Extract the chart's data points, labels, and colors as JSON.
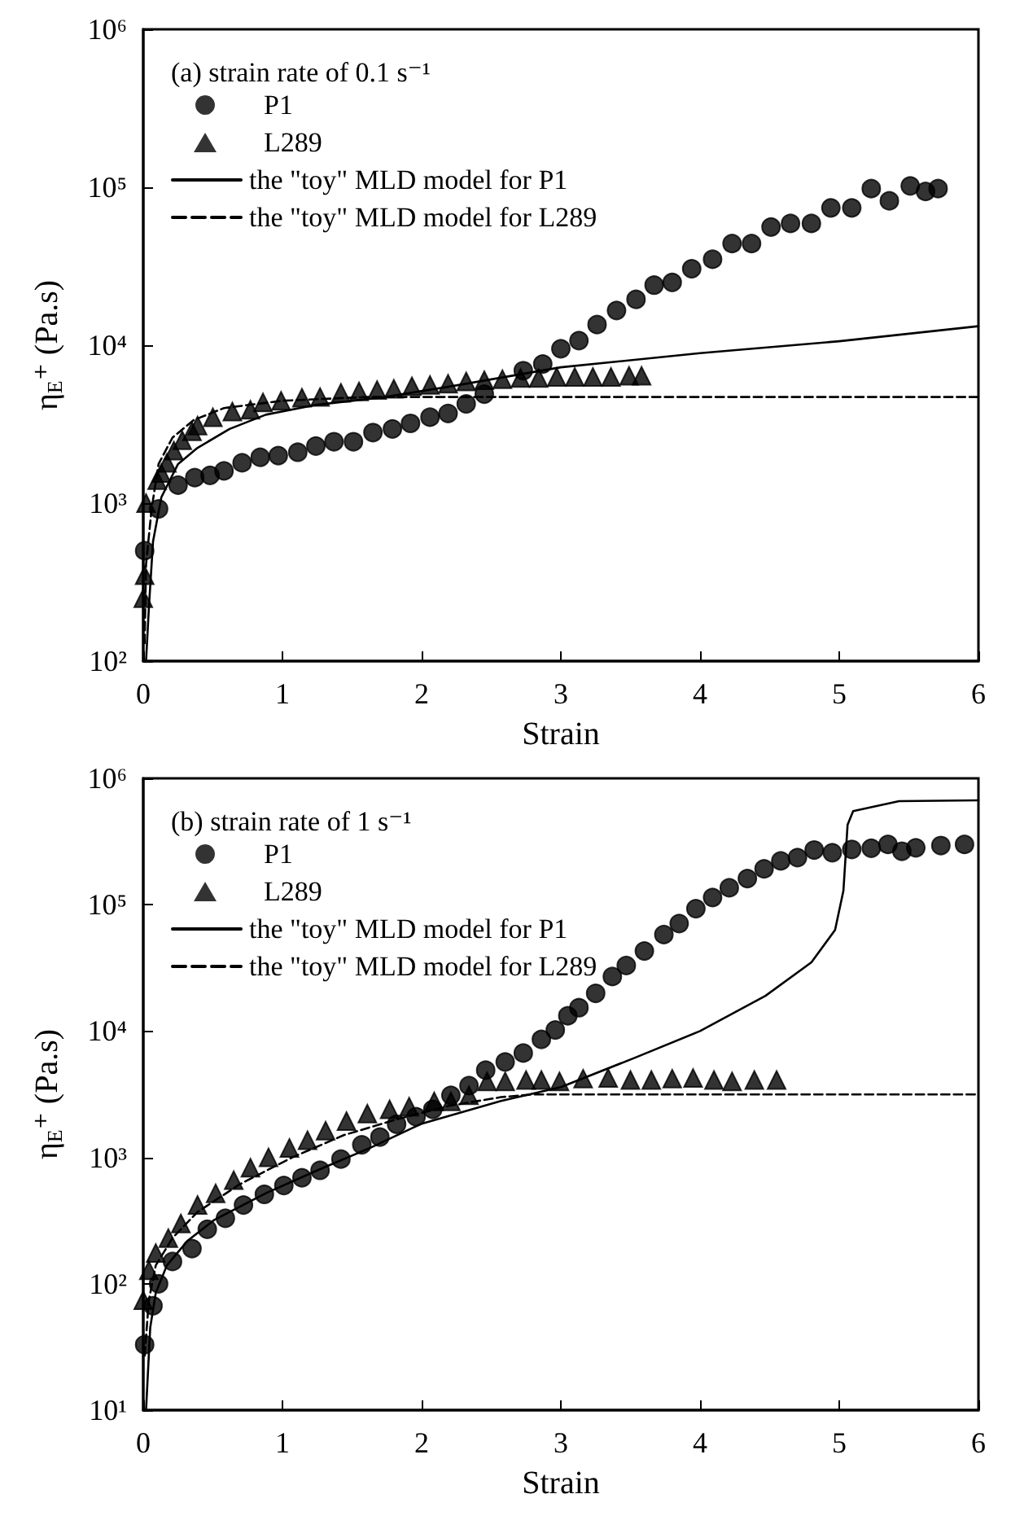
{
  "chart_data": [
    {
      "type": "scatter",
      "legend_title": "(a) strain rate of 0.1 s⁻¹",
      "xlabel": "Strain",
      "ylabel": "η$_{E}$⁺ (Pa.s)",
      "xlim": [
        0,
        6
      ],
      "xticks": [
        0,
        1,
        2,
        3,
        4,
        5,
        6
      ],
      "ylim": [
        100,
        1000000
      ],
      "yticks": [
        {
          "value": 100,
          "label": "10²"
        },
        {
          "value": 1000,
          "label": "10³"
        },
        {
          "value": 10000,
          "label": "10⁴"
        },
        {
          "value": 100000,
          "label": "10⁵"
        },
        {
          "value": 1000000,
          "label": "10⁶"
        }
      ],
      "log": "y",
      "grid": false,
      "legend": "top left",
      "series": [
        {
          "name": "P1",
          "type": "scatter",
          "marker": "circle",
          "color": "#000000",
          "x": [
            0.01,
            0.11,
            0.25,
            0.37,
            0.48,
            0.58,
            0.71,
            0.84,
            0.97,
            1.11,
            1.24,
            1.37,
            1.51,
            1.65,
            1.79,
            1.92,
            2.06,
            2.19,
            2.32,
            2.45,
            2.73,
            2.87,
            3.0,
            3.13,
            3.26,
            3.4,
            3.54,
            3.67,
            3.8,
            3.94,
            4.09,
            4.23,
            4.37,
            4.51,
            4.65,
            4.8,
            4.94,
            5.09,
            5.23,
            5.36,
            5.51,
            5.62,
            5.71
          ],
          "values": [
            500,
            920,
            1300,
            1450,
            1500,
            1600,
            1800,
            1950,
            2000,
            2100,
            2300,
            2450,
            2450,
            2800,
            2950,
            3200,
            3500,
            3700,
            4250,
            4900,
            6900,
            7600,
            9500,
            10700,
            13500,
            16600,
            19500,
            24000,
            25000,
            30500,
            35000,
            44000,
            44000,
            56000,
            59000,
            59000,
            74000,
            74000,
            98000,
            82000,
            102000,
            94000,
            98000
          ]
        },
        {
          "name": "L289",
          "type": "scatter",
          "marker": "triangle",
          "color": "#000000",
          "x": [
            0.0,
            0.01,
            0.02,
            0.1,
            0.13,
            0.17,
            0.22,
            0.28,
            0.35,
            0.39,
            0.5,
            0.64,
            0.77,
            0.86,
            0.99,
            1.14,
            1.27,
            1.42,
            1.55,
            1.68,
            1.8,
            1.93,
            2.06,
            2.19,
            2.32,
            2.45,
            2.58,
            2.71,
            2.84,
            2.97,
            3.1,
            3.23,
            3.36,
            3.49,
            3.58
          ],
          "values": [
            250,
            350,
            1000,
            1400,
            1550,
            1800,
            2150,
            2500,
            2850,
            3100,
            3500,
            3800,
            3900,
            4350,
            4450,
            4650,
            4700,
            5000,
            5100,
            5200,
            5300,
            5500,
            5600,
            5700,
            5900,
            6000,
            6100,
            6200,
            6200,
            6300,
            6300,
            6300,
            6300,
            6400,
            6400
          ]
        },
        {
          "name": "the \"toy\" MLD model for P1",
          "type": "line",
          "marker": "none",
          "line_style": "solid",
          "color": "#000000",
          "x": [
            0.02,
            0.04,
            0.07,
            0.13,
            0.25,
            0.39,
            0.62,
            0.88,
            1.25,
            1.7,
            2.19,
            3.0,
            4.0,
            5.0,
            6.0
          ],
          "values": [
            100,
            215,
            570,
            1090,
            1770,
            2240,
            2950,
            3630,
            4200,
            4650,
            5450,
            7250,
            8900,
            10600,
            13200
          ]
        },
        {
          "name": "the \"toy\" MLD model for L289",
          "type": "line",
          "marker": "none",
          "line_style": "dashed",
          "color": "#000000",
          "x": [
            0.01,
            0.02,
            0.06,
            0.11,
            0.21,
            0.36,
            0.58,
            1.0,
            1.6,
            6.0
          ],
          "values": [
            130,
            410,
            920,
            1770,
            2600,
            3350,
            4000,
            4450,
            4700,
            4700
          ]
        }
      ]
    },
    {
      "type": "scatter",
      "legend_title": "(b) strain rate of 1 s⁻¹",
      "xlabel": "Strain",
      "ylabel": "η$_{E}$⁺ (Pa.s)",
      "xlim": [
        0,
        6
      ],
      "xticks": [
        0,
        1,
        2,
        3,
        4,
        5,
        6
      ],
      "ylim": [
        10,
        1000000
      ],
      "yticks": [
        {
          "value": 10,
          "label": "10¹"
        },
        {
          "value": 100,
          "label": "10²"
        },
        {
          "value": 1000,
          "label": "10³"
        },
        {
          "value": 10000,
          "label": "10⁴"
        },
        {
          "value": 100000,
          "label": "10⁵"
        },
        {
          "value": 1000000,
          "label": "10⁶"
        }
      ],
      "log": "y",
      "grid": false,
      "legend": "top left",
      "series": [
        {
          "name": "P1",
          "type": "scatter",
          "marker": "circle",
          "color": "#000000",
          "x": [
            0.01,
            0.07,
            0.11,
            0.21,
            0.35,
            0.46,
            0.59,
            0.72,
            0.87,
            1.01,
            1.14,
            1.27,
            1.42,
            1.57,
            1.7,
            1.82,
            1.96,
            2.08,
            2.21,
            2.34,
            2.46,
            2.6,
            2.73,
            2.86,
            2.96,
            3.05,
            3.13,
            3.25,
            3.37,
            3.47,
            3.6,
            3.74,
            3.85,
            3.97,
            4.09,
            4.21,
            4.34,
            4.46,
            4.58,
            4.7,
            4.82,
            4.95,
            5.09,
            5.23,
            5.35,
            5.45,
            5.55,
            5.73,
            5.9
          ],
          "values": [
            33,
            67,
            100,
            150,
            190,
            270,
            330,
            420,
            510,
            600,
            690,
            790,
            970,
            1260,
            1450,
            1830,
            2100,
            2400,
            3100,
            3700,
            4900,
            5700,
            6700,
            8600,
            10200,
            13200,
            15300,
            19900,
            27000,
            33000,
            43000,
            58000,
            71000,
            93000,
            114000,
            136000,
            161000,
            192000,
            222000,
            236000,
            271000,
            258000,
            274000,
            280000,
            300000,
            265000,
            282000,
            294000,
            300000
          ]
        },
        {
          "name": "L289",
          "type": "scatter",
          "marker": "triangle",
          "color": "#000000",
          "x": [
            0.0,
            0.04,
            0.09,
            0.18,
            0.27,
            0.39,
            0.52,
            0.65,
            0.77,
            0.9,
            1.05,
            1.18,
            1.31,
            1.46,
            1.61,
            1.77,
            1.91,
            2.09,
            2.21,
            2.34,
            2.47,
            2.6,
            2.75,
            2.86,
            2.99,
            3.16,
            3.34,
            3.5,
            3.65,
            3.8,
            3.95,
            4.1,
            4.23,
            4.39,
            4.55
          ],
          "values": [
            74,
            128,
            175,
            230,
            300,
            420,
            520,
            660,
            830,
            1000,
            1190,
            1370,
            1630,
            1940,
            2220,
            2400,
            2520,
            2780,
            2780,
            3100,
            4000,
            4000,
            4100,
            4100,
            4000,
            4200,
            4250,
            4100,
            4100,
            4200,
            4250,
            4100,
            4000,
            4100,
            4100
          ]
        },
        {
          "name": "the \"toy\" MLD model for P1",
          "type": "line",
          "marker": "none",
          "line_style": "solid",
          "color": "#000000",
          "x": [
            0.02,
            0.05,
            0.09,
            0.17,
            0.32,
            0.51,
            0.88,
            1.25,
            1.63,
            2.0,
            2.57,
            3.0,
            3.54,
            4.0,
            4.47,
            4.8,
            4.97,
            5.03,
            5.06,
            5.1,
            5.43,
            6.0
          ],
          "values": [
            10,
            45,
            85,
            140,
            220,
            320,
            520,
            790,
            1190,
            1850,
            2800,
            3600,
            6200,
            10000,
            19000,
            35000,
            63000,
            129000,
            430000,
            550000,
            660000,
            670000
          ]
        },
        {
          "name": "the \"toy\" MLD model for L289",
          "type": "line",
          "marker": "none",
          "line_style": "dashed",
          "color": "#000000",
          "x": [
            0.01,
            0.04,
            0.09,
            0.21,
            0.39,
            0.69,
            1.07,
            1.44,
            1.82,
            2.19,
            2.57,
            2.8,
            6.0
          ],
          "values": [
            27,
            74,
            140,
            230,
            370,
            610,
            1000,
            1500,
            2000,
            2550,
            3000,
            3150,
            3150
          ]
        }
      ]
    }
  ]
}
